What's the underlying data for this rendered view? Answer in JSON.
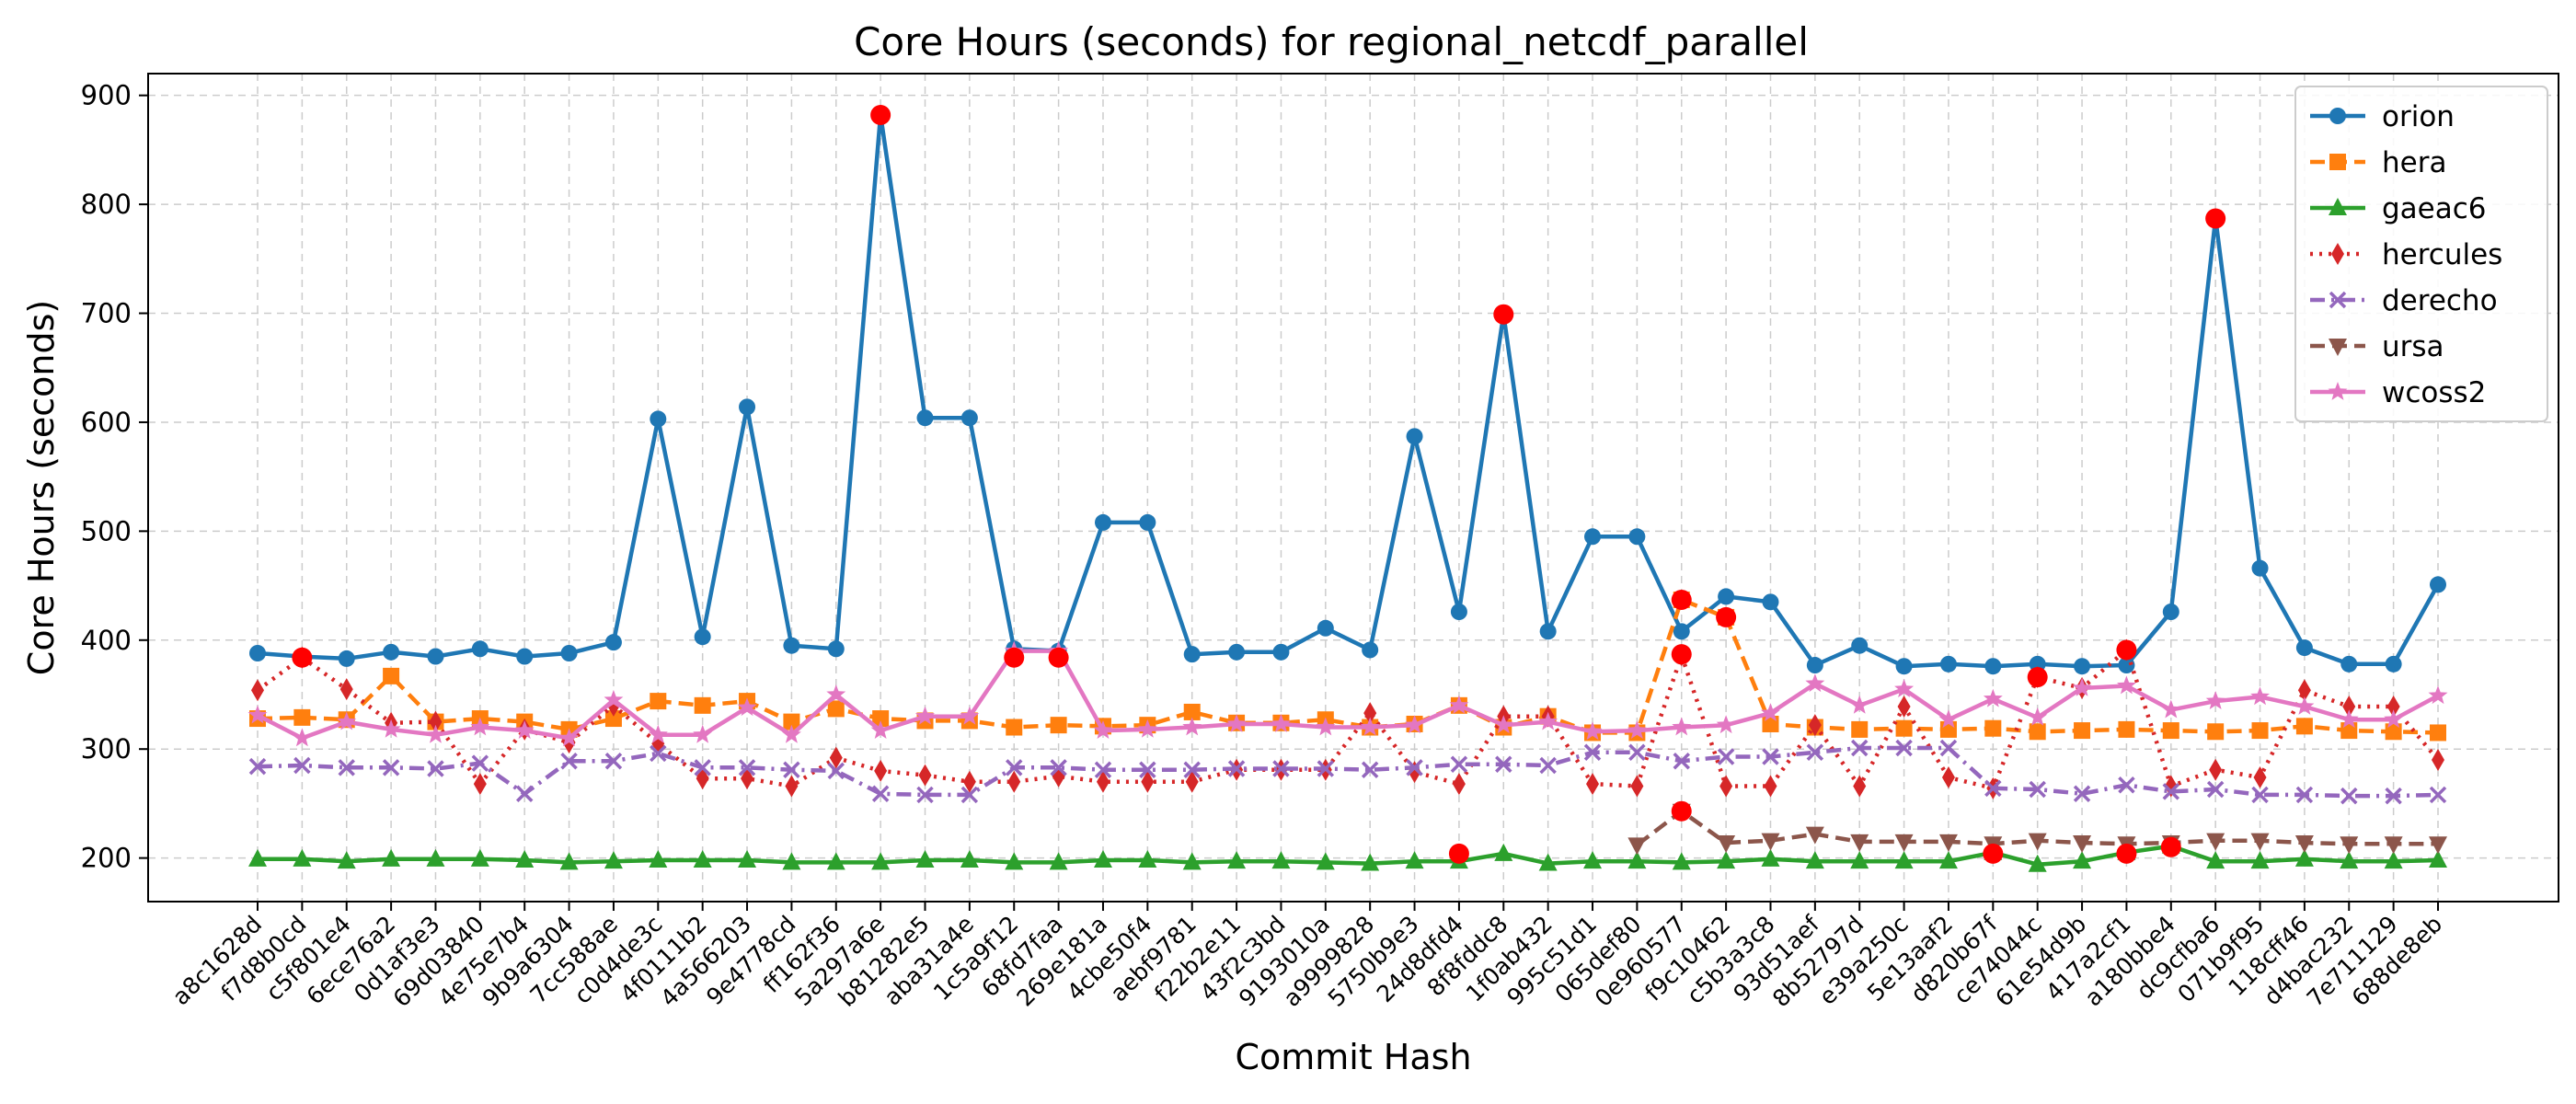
{
  "chart_data": {
    "type": "line",
    "title": "Core Hours (seconds) for regional_netcdf_parallel",
    "xlabel": "Commit Hash",
    "ylabel": "Core Hours (seconds)",
    "ylim": [
      160,
      920
    ],
    "yticks": [
      200,
      300,
      400,
      500,
      600,
      700,
      800,
      900
    ],
    "grid": true,
    "legend_position": "top-right",
    "categories": [
      "a8c1628d",
      "f7d8b0cd",
      "c5f801e4",
      "6ece76a2",
      "0d1af3e3",
      "69d03840",
      "4e75e7b4",
      "9b9a6304",
      "7cc588ae",
      "c0d4de3c",
      "4f0111b2",
      "4a566203",
      "9e4778cd",
      "ff162f36",
      "5a297a6e",
      "b81282e5",
      "aba31a4e",
      "1c5a9f12",
      "68fd7faa",
      "269e181a",
      "4cbe50f4",
      "aebf9781",
      "f22b2e11",
      "43f2c3bd",
      "9193010a",
      "a9999828",
      "5750b9e3",
      "24d8dfd4",
      "8f8fddc8",
      "1f0ab432",
      "995c51d1",
      "065def80",
      "0e960577",
      "f9c10462",
      "c5b3a3c8",
      "93d51aef",
      "8b52797d",
      "e39a250c",
      "5e13aaf2",
      "d820b67f",
      "ce74044c",
      "61e54d9b",
      "417a2cf1",
      "a180bbe4",
      "dc9cfba6",
      "071b9f95",
      "118cff46",
      "d4bac232",
      "7e711129",
      "688de8eb"
    ],
    "series": [
      {
        "name": "orion",
        "color": "#1f77b4",
        "marker": "circle",
        "dash": "solid",
        "values": [
          388,
          385,
          383,
          389,
          385,
          392,
          385,
          388,
          398,
          603,
          403,
          614,
          395,
          392,
          882,
          604,
          604,
          392,
          390,
          508,
          508,
          387,
          389,
          389,
          411,
          391,
          587,
          426,
          699,
          408,
          495,
          495,
          408,
          440,
          435,
          377,
          395,
          376,
          378,
          376,
          378,
          376,
          377,
          426,
          787,
          466,
          393,
          378,
          378,
          451
        ]
      },
      {
        "name": "hera",
        "color": "#ff7f0e",
        "marker": "square",
        "dash": "dash",
        "values": [
          328,
          329,
          327,
          367,
          325,
          328,
          325,
          318,
          328,
          344,
          340,
          344,
          325,
          337,
          328,
          326,
          326,
          320,
          322,
          321,
          322,
          334,
          324,
          324,
          327,
          320,
          323,
          340,
          320,
          330,
          315,
          315,
          437,
          421,
          323,
          320,
          318,
          319,
          318,
          319,
          316,
          317,
          318,
          317,
          316,
          317,
          321,
          317,
          316,
          315
        ]
      },
      {
        "name": "gaeac6",
        "color": "#2ca02c",
        "marker": "triangle-up",
        "dash": "solid",
        "values": [
          199,
          199,
          197,
          199,
          199,
          199,
          198,
          196,
          197,
          198,
          198,
          198,
          196,
          196,
          196,
          198,
          198,
          196,
          196,
          198,
          198,
          196,
          197,
          197,
          196,
          195,
          197,
          197,
          204,
          195,
          197,
          197,
          196,
          197,
          199,
          197,
          197,
          197,
          197,
          205,
          194,
          197,
          205,
          211,
          197,
          197,
          199,
          197,
          197,
          198
        ]
      },
      {
        "name": "hercules",
        "color": "#d62728",
        "marker": "diamond",
        "dash": "dot",
        "values": [
          354,
          384,
          355,
          324,
          325,
          268,
          318,
          306,
          340,
          305,
          273,
          273,
          266,
          292,
          280,
          276,
          270,
          270,
          275,
          270,
          270,
          270,
          281,
          281,
          281,
          333,
          279,
          268,
          330,
          330,
          268,
          266,
          386,
          266,
          266,
          322,
          266,
          339,
          274,
          264,
          366,
          356,
          391,
          266,
          281,
          274,
          354,
          339,
          339,
          290
        ]
      },
      {
        "name": "derecho",
        "color": "#9467bd",
        "marker": "x",
        "dash": "dashdot",
        "values": [
          284,
          285,
          283,
          283,
          282,
          287,
          259,
          289,
          289,
          296,
          283,
          283,
          281,
          280,
          259,
          258,
          258,
          283,
          283,
          281,
          281,
          281,
          282,
          282,
          282,
          281,
          283,
          286,
          286,
          285,
          297,
          297,
          289,
          293,
          293,
          297,
          301,
          301,
          301,
          264,
          263,
          259,
          267,
          261,
          263,
          258,
          258,
          257,
          257,
          258
        ]
      },
      {
        "name": "ursa",
        "color": "#8c564b",
        "marker": "triangle-down",
        "dash": "dash",
        "values": [
          null,
          null,
          null,
          null,
          null,
          null,
          null,
          null,
          null,
          null,
          null,
          null,
          null,
          null,
          null,
          null,
          null,
          null,
          null,
          null,
          null,
          null,
          null,
          null,
          null,
          null,
          null,
          null,
          null,
          null,
          null,
          212,
          243,
          214,
          216,
          222,
          215,
          215,
          215,
          213,
          216,
          214,
          213,
          214,
          216,
          216,
          214,
          213,
          213,
          213
        ]
      },
      {
        "name": "wcoss2",
        "color": "#e377c2",
        "marker": "star",
        "dash": "solid",
        "values": [
          331,
          310,
          325,
          318,
          313,
          320,
          317,
          310,
          345,
          313,
          313,
          338,
          313,
          350,
          317,
          330,
          330,
          390,
          390,
          317,
          318,
          320,
          323,
          323,
          320,
          320,
          322,
          340,
          322,
          325,
          316,
          317,
          320,
          322,
          333,
          360,
          340,
          355,
          327,
          346,
          329,
          356,
          358,
          336,
          344,
          348,
          339,
          327,
          327,
          349
        ]
      }
    ],
    "highlights": [
      {
        "category": "f7d8b0cd",
        "value": 384
      },
      {
        "category": "5a297a6e",
        "value": 882
      },
      {
        "category": "1c5a9f12",
        "value": 384
      },
      {
        "category": "68fd7faa",
        "value": 384
      },
      {
        "category": "24d8dfd4",
        "value": 204
      },
      {
        "category": "8f8fddc8",
        "value": 699
      },
      {
        "category": "0e960577",
        "value": 437
      },
      {
        "category": "0e960577",
        "value": 387
      },
      {
        "category": "0e960577",
        "value": 243
      },
      {
        "category": "f9c10462",
        "value": 421
      },
      {
        "category": "d820b67f",
        "value": 204
      },
      {
        "category": "ce74044c",
        "value": 366
      },
      {
        "category": "417a2cf1",
        "value": 391
      },
      {
        "category": "417a2cf1",
        "value": 204
      },
      {
        "category": "a180bbe4",
        "value": 210
      },
      {
        "category": "dc9cfba6",
        "value": 787
      }
    ],
    "highlight_color": "#ff0000"
  }
}
